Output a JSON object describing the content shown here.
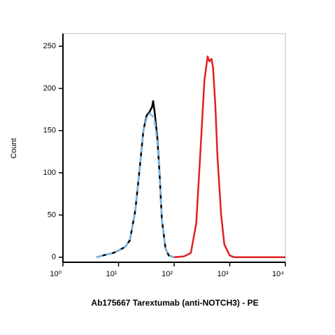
{
  "chart_data": {
    "type": "line",
    "x_label": "Ab175667 Tarextumab (anti-NOTCH3) - PE",
    "y_label": "Count",
    "xscale": "log",
    "xlim": [
      1,
      10000
    ],
    "xticks": [
      {
        "value": 1,
        "label": "10⁰"
      },
      {
        "value": 10,
        "label": "10¹"
      },
      {
        "value": 100,
        "label": "10²"
      },
      {
        "value": 1000,
        "label": "10³"
      },
      {
        "value": 10000,
        "label": "10⁴"
      }
    ],
    "ylim": [
      -6,
      265
    ],
    "yticks": [
      0,
      50,
      100,
      150,
      200,
      250
    ],
    "series": [
      {
        "color": "#000000",
        "dashed": false,
        "x": [
          4,
          6,
          8,
          10,
          13,
          16,
          20,
          24,
          28,
          32,
          36,
          40,
          42,
          45,
          50,
          55,
          60,
          70,
          80,
          100
        ],
        "values": [
          0,
          3,
          5,
          8,
          12,
          20,
          55,
          105,
          150,
          168,
          172,
          178,
          185,
          170,
          140,
          95,
          45,
          10,
          2,
          0
        ]
      },
      {
        "color": "#7ab8e8",
        "dashed": true,
        "x": [
          4,
          6,
          8,
          10,
          13,
          16,
          20,
          24,
          28,
          32,
          36,
          40,
          45,
          50,
          55,
          60,
          70,
          80,
          100
        ],
        "values": [
          0,
          3,
          5,
          8,
          12,
          20,
          55,
          105,
          150,
          165,
          170,
          168,
          160,
          135,
          92,
          45,
          10,
          2,
          0
        ]
      },
      {
        "color": "#e02020",
        "dashed": false,
        "x": [
          100,
          150,
          200,
          250,
          300,
          350,
          400,
          430,
          470,
          500,
          550,
          600,
          700,
          800,
          1000,
          1200,
          10000
        ],
        "values": [
          0,
          1,
          5,
          40,
          130,
          210,
          238,
          232,
          235,
          225,
          180,
          120,
          50,
          15,
          2,
          0,
          0
        ]
      }
    ]
  }
}
